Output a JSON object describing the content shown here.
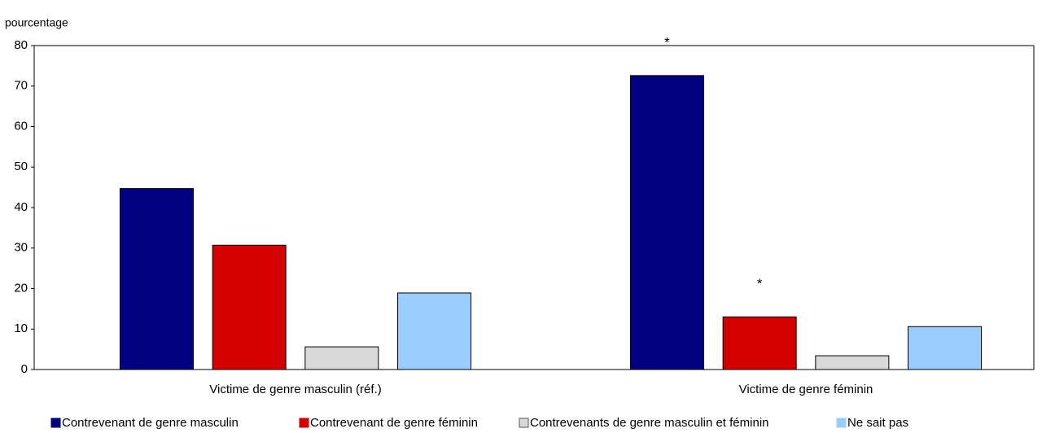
{
  "chart_data": {
    "type": "bar",
    "y_label": "pourcentage",
    "categories": [
      "Victime de genre masculin (réf.)",
      "Victime de genre féminin"
    ],
    "series": [
      {
        "name": "Contrevenant de genre masculin",
        "color": "#000080",
        "values": [
          44.7,
          72.6
        ]
      },
      {
        "name": "Contrevenant de genre féminin",
        "color": "#d40000",
        "values": [
          30.7,
          13.0
        ]
      },
      {
        "name": "Contrevenants de genre masculin et féminin",
        "color": "#d9d9d9",
        "values": [
          5.6,
          3.4
        ]
      },
      {
        "name": "Ne sait pas",
        "color": "#99ccff",
        "values": [
          18.9,
          10.6
        ]
      }
    ],
    "annotations": [
      {
        "text": "*",
        "series": 0,
        "category": 1
      },
      {
        "text": "*",
        "series": 1,
        "category": 1
      }
    ],
    "ylim": [
      0,
      80
    ],
    "yticks": [
      0,
      10,
      20,
      30,
      40,
      50,
      60,
      70,
      80
    ],
    "grid": false,
    "legend": "bottom"
  }
}
